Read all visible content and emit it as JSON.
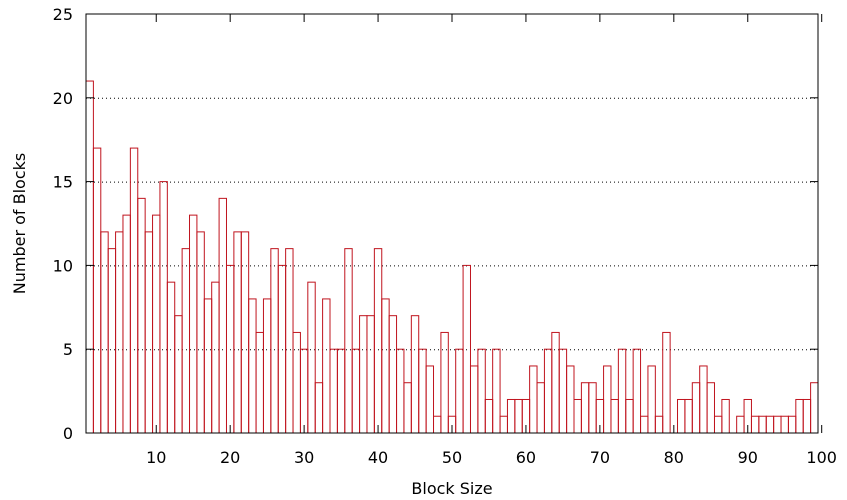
{
  "chart_data": {
    "type": "bar",
    "xlabel": "Block Size",
    "ylabel": "Number of Blocks",
    "xlim": [
      0.5,
      99.5
    ],
    "ylim": [
      0,
      25
    ],
    "x_ticks": [
      10,
      20,
      30,
      40,
      50,
      60,
      70,
      80,
      90,
      100
    ],
    "y_ticks": [
      0,
      5,
      10,
      15,
      20,
      25
    ],
    "grid": "horizontal-dotted",
    "series": [
      {
        "color": "#c0141e",
        "x": [
          1,
          2,
          3,
          4,
          5,
          6,
          7,
          8,
          9,
          10,
          11,
          12,
          13,
          14,
          15,
          16,
          17,
          18,
          19,
          20,
          21,
          22,
          23,
          24,
          25,
          26,
          27,
          28,
          29,
          30,
          31,
          32,
          33,
          34,
          35,
          36,
          37,
          38,
          39,
          40,
          41,
          42,
          43,
          44,
          45,
          46,
          47,
          48,
          49,
          50,
          51,
          52,
          53,
          54,
          55,
          56,
          57,
          58,
          59,
          60,
          61,
          62,
          63,
          64,
          65,
          66,
          67,
          68,
          69,
          70,
          71,
          72,
          73,
          74,
          75,
          76,
          77,
          78,
          79,
          80,
          81,
          82,
          83,
          84,
          85,
          86,
          87,
          88,
          89,
          90,
          91,
          92,
          93,
          94,
          95,
          96,
          97,
          98,
          99
        ],
        "values": [
          21,
          17,
          12,
          11,
          12,
          13,
          17,
          14,
          12,
          13,
          15,
          9,
          7,
          11,
          13,
          12,
          8,
          9,
          14,
          10,
          12,
          12,
          8,
          6,
          8,
          11,
          10,
          11,
          6,
          5,
          9,
          3,
          8,
          5,
          5,
          11,
          5,
          7,
          7,
          11,
          8,
          7,
          5,
          3,
          7,
          5,
          4,
          1,
          6,
          1,
          5,
          10,
          4,
          5,
          2,
          5,
          1,
          2,
          2,
          2,
          4,
          3,
          5,
          6,
          5,
          4,
          2,
          3,
          3,
          2,
          4,
          2,
          5,
          2,
          5,
          1,
          4,
          1,
          6,
          0,
          2,
          2,
          3,
          4,
          3,
          1,
          2,
          0,
          1,
          2,
          1,
          1,
          1,
          1,
          1,
          1,
          2,
          2,
          3
        ]
      }
    ]
  }
}
